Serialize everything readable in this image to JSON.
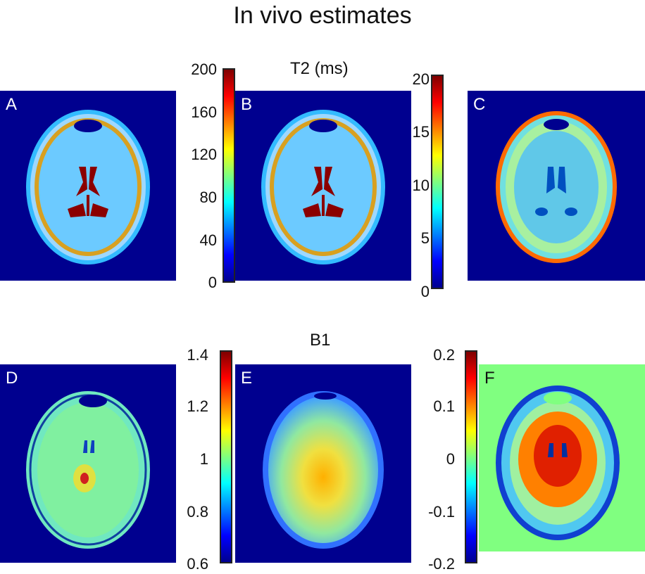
{
  "title": "In vivo estimates",
  "rows": [
    {
      "title": "T2 (ms)",
      "panels": [
        {
          "label": "A"
        },
        {
          "label": "B"
        },
        {
          "label": "C"
        }
      ],
      "colorbars": [
        {
          "ticks": [
            "200",
            "160",
            "120",
            "80",
            "40",
            "0"
          ]
        },
        {
          "ticks": [
            "20",
            "15",
            "10",
            "5",
            "0"
          ]
        }
      ]
    },
    {
      "title": "B1",
      "panels": [
        {
          "label": "D"
        },
        {
          "label": "E"
        },
        {
          "label": "F"
        }
      ],
      "colorbars": [
        {
          "ticks": [
            "1.4",
            "1.2",
            "1",
            "0.8",
            "0.6"
          ]
        },
        {
          "ticks": [
            "0.2",
            "0.1",
            "0",
            "-0.1",
            "-0.2"
          ]
        }
      ]
    }
  ],
  "colors": {
    "background_dark": "#00008f",
    "background_f": "#80ff80"
  }
}
